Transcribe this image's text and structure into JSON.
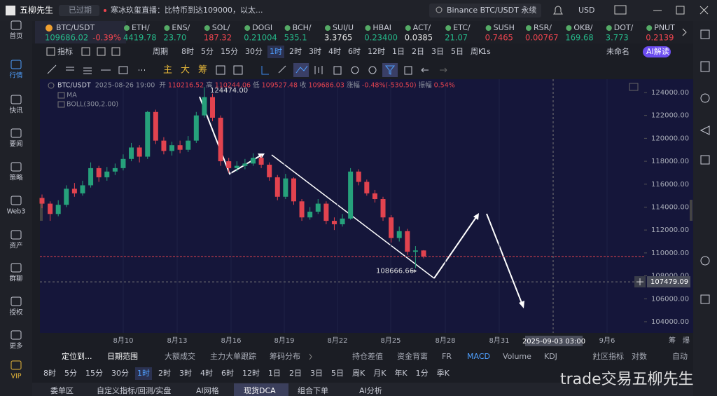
{
  "top_bar": {
    "app_name": "五柳先生",
    "status": "已过期",
    "news": "寒冰玖玺直播：比特币到达109000，以太...",
    "search": "Binance BTC/USDT 永续",
    "currency": "USD"
  },
  "sidebar": [
    "首页",
    "行情",
    "快讯",
    "要闻",
    "策略",
    "Web3",
    "资产",
    "群聊",
    "授权",
    "更多",
    "VIP"
  ],
  "sidebar_active": 1,
  "tickers": [
    {
      "symbol": "BTC/USDT",
      "price": "109686.02",
      "change": "-0.39%",
      "color": "#25b98a"
    },
    {
      "symbol": "ETH/",
      "price": "4419.78",
      "color": "#25b98a"
    },
    {
      "symbol": "ENS/",
      "price": "23.70",
      "color": "#25b98a"
    },
    {
      "symbol": "SOL/",
      "price": "187.32",
      "color": "#f0454f"
    },
    {
      "symbol": "DOGI",
      "price": "0.21004",
      "color": "#25b98a"
    },
    {
      "symbol": "BCH/",
      "price": "535.1",
      "color": "#25b98a"
    },
    {
      "symbol": "SUI/U",
      "price": "3.3765",
      "color": "#e6e6e6"
    },
    {
      "symbol": "HBAI",
      "price": "0.23400",
      "color": "#25b98a"
    },
    {
      "symbol": "ACT/",
      "price": "0.0385",
      "color": "#e6e6e6"
    },
    {
      "symbol": "ETC/",
      "price": "21.07",
      "color": "#25b98a"
    },
    {
      "symbol": "SUSH",
      "price": "0.7465",
      "color": "#f0454f"
    },
    {
      "symbol": "RSR/",
      "price": "0.00767",
      "color": "#f0454f"
    },
    {
      "symbol": "OKB/",
      "price": "169.68",
      "color": "#25b98a"
    },
    {
      "symbol": "DOT/",
      "price": "3.773",
      "color": "#25b98a"
    },
    {
      "symbol": "PNUT",
      "price": "0.2139",
      "color": "#f0454f"
    }
  ],
  "toolbar": {
    "indicator": "指标",
    "period_label": "周期",
    "periods": [
      "8时",
      "5分",
      "15分",
      "30分",
      "1时",
      "2时",
      "3时",
      "4时",
      "6时",
      "12时",
      "1日",
      "2日",
      "3日",
      "5日",
      "周K"
    ],
    "active_index": 4,
    "seconds": "1s",
    "layout": "未命名",
    "ai": "AI解读"
  },
  "drawing_tools": [
    "主",
    "大",
    "筹"
  ],
  "chart_data": {
    "type": "candlestick",
    "symbol": "BTC/USDT",
    "up_color": "#26a17b",
    "down_color": "#e2434f",
    "legend": {
      "time": "2025-08-26 19:00",
      "open_label": "开",
      "high_label": "高",
      "low_label": "低",
      "close_label": "收",
      "change_label": "涨幅",
      "change": "-0.48%(-530.50)",
      "amplitude_label": "振幅",
      "amplitude": "0.54%"
    },
    "indicators": [
      "MA",
      "BOLL(300,2.00)"
    ],
    "ohlc": [
      [
        114800,
        115100,
        113900,
        114300
      ],
      [
        114300,
        114500,
        112800,
        113400
      ],
      [
        113400,
        114600,
        113200,
        114200
      ],
      [
        114200,
        115900,
        114000,
        115600
      ],
      [
        115600,
        116100,
        114900,
        115200
      ],
      [
        115200,
        116300,
        115000,
        115900
      ],
      [
        115900,
        117900,
        115700,
        117400
      ],
      [
        117400,
        117600,
        116200,
        116600
      ],
      [
        116600,
        117500,
        116300,
        117100
      ],
      [
        117100,
        117800,
        116800,
        117400
      ],
      [
        117400,
        118600,
        117200,
        118200
      ],
      [
        118200,
        119600,
        118000,
        119200
      ],
      [
        119200,
        119400,
        117900,
        118400
      ],
      [
        118400,
        122400,
        118200,
        122300
      ],
      [
        122300,
        122500,
        119500,
        119800
      ],
      [
        119800,
        120100,
        118600,
        118900
      ],
      [
        118900,
        119700,
        118500,
        119400
      ],
      [
        119400,
        119800,
        118700,
        119000
      ],
      [
        119000,
        120200,
        118800,
        119800
      ],
      [
        119800,
        122300,
        119600,
        122000
      ],
      [
        122000,
        124474,
        121800,
        123600
      ],
      [
        123600,
        123900,
        121500,
        121800
      ],
      [
        121800,
        122000,
        117600,
        118000
      ],
      [
        118000,
        118300,
        117000,
        117400
      ],
      [
        117400,
        118000,
        117100,
        117600
      ],
      [
        117600,
        118200,
        117300,
        117800
      ],
      [
        117800,
        118700,
        117600,
        118300
      ],
      [
        118300,
        118500,
        117400,
        117700
      ],
      [
        117700,
        117900,
        116300,
        116600
      ],
      [
        116600,
        116800,
        114600,
        114900
      ],
      [
        114900,
        116900,
        114700,
        116500
      ],
      [
        116500,
        116600,
        114200,
        114500
      ],
      [
        114500,
        114700,
        112800,
        113100
      ],
      [
        113100,
        114000,
        112900,
        113600
      ],
      [
        113600,
        114700,
        113400,
        114300
      ],
      [
        114300,
        114500,
        112500,
        112800
      ],
      [
        112800,
        113100,
        112000,
        112500
      ],
      [
        112500,
        113400,
        112300,
        113000
      ],
      [
        113000,
        117400,
        112900,
        117100
      ],
      [
        117100,
        117300,
        115900,
        116200
      ],
      [
        116200,
        116400,
        115000,
        115200
      ],
      [
        115200,
        115500,
        114400,
        114700
      ],
      [
        114700,
        114900,
        112800,
        113100
      ],
      [
        113100,
        113300,
        110900,
        111300
      ],
      [
        111300,
        112300,
        111000,
        111900
      ],
      [
        111900,
        112100,
        109800,
        110100
      ],
      [
        110100,
        110600,
        108666.66,
        110216.52
      ],
      [
        110216.52,
        110244.06,
        109527.48,
        109686.03
      ]
    ],
    "annotations": [
      {
        "value": 124474,
        "label": "124474.00"
      },
      {
        "value": 108666.66,
        "label": "108666.66"
      }
    ],
    "ylim": [
      103020,
      125160
    ],
    "yticks": [
      {
        "value": 104000,
        "label": "104000.00"
      },
      {
        "value": 106000,
        "label": "106000.00"
      },
      {
        "value": 108000,
        "label": "108000.00"
      },
      {
        "value": 110000,
        "label": "110000.00"
      },
      {
        "value": 112000,
        "label": "112000.00"
      },
      {
        "value": 114000,
        "label": "114000.00"
      },
      {
        "value": 116000,
        "label": "116000.00"
      },
      {
        "value": 118000,
        "label": "118000.00"
      },
      {
        "value": 120000,
        "label": "120000.00"
      },
      {
        "value": 122000,
        "label": "122000.00"
      },
      {
        "value": 124000,
        "label": "124000.00"
      }
    ],
    "x_labels": [
      "8月10",
      "8月13",
      "8月16",
      "8月19",
      "8月22",
      "8月25",
      "8月28",
      "8月31",
      "9月6"
    ],
    "crosshair": {
      "price": 107479.09,
      "time": "2025-09-03 03:00"
    },
    "axis_buttons": [
      "筹",
      "爆"
    ]
  },
  "bottom_tabs": [
    "定位到...",
    "日期范围",
    "大额成交",
    "主力大单跟踪",
    "筹码分布",
    "持仓差值",
    "资金背离",
    "FR",
    "MACD",
    "Volume",
    "KDJ",
    "社区指标",
    "对数",
    "自动"
  ],
  "bottom_tabs_active": 8,
  "bottom_periods": [
    "8时",
    "5分",
    "15分",
    "30分",
    "1时",
    "2时",
    "3时",
    "4时",
    "6时",
    "12时",
    "1日",
    "2日",
    "3日",
    "5日",
    "周K",
    "月K",
    "年K",
    "1分",
    "季K"
  ],
  "bottom_periods_active": 4,
  "panel_tabs": [
    "委单区",
    "自定义指标/回测/实盘",
    "AI网格",
    "现货DCA",
    "组合下单",
    "AI分析"
  ],
  "panel_tabs_active": 3,
  "watermark": "trade交易五柳先生"
}
